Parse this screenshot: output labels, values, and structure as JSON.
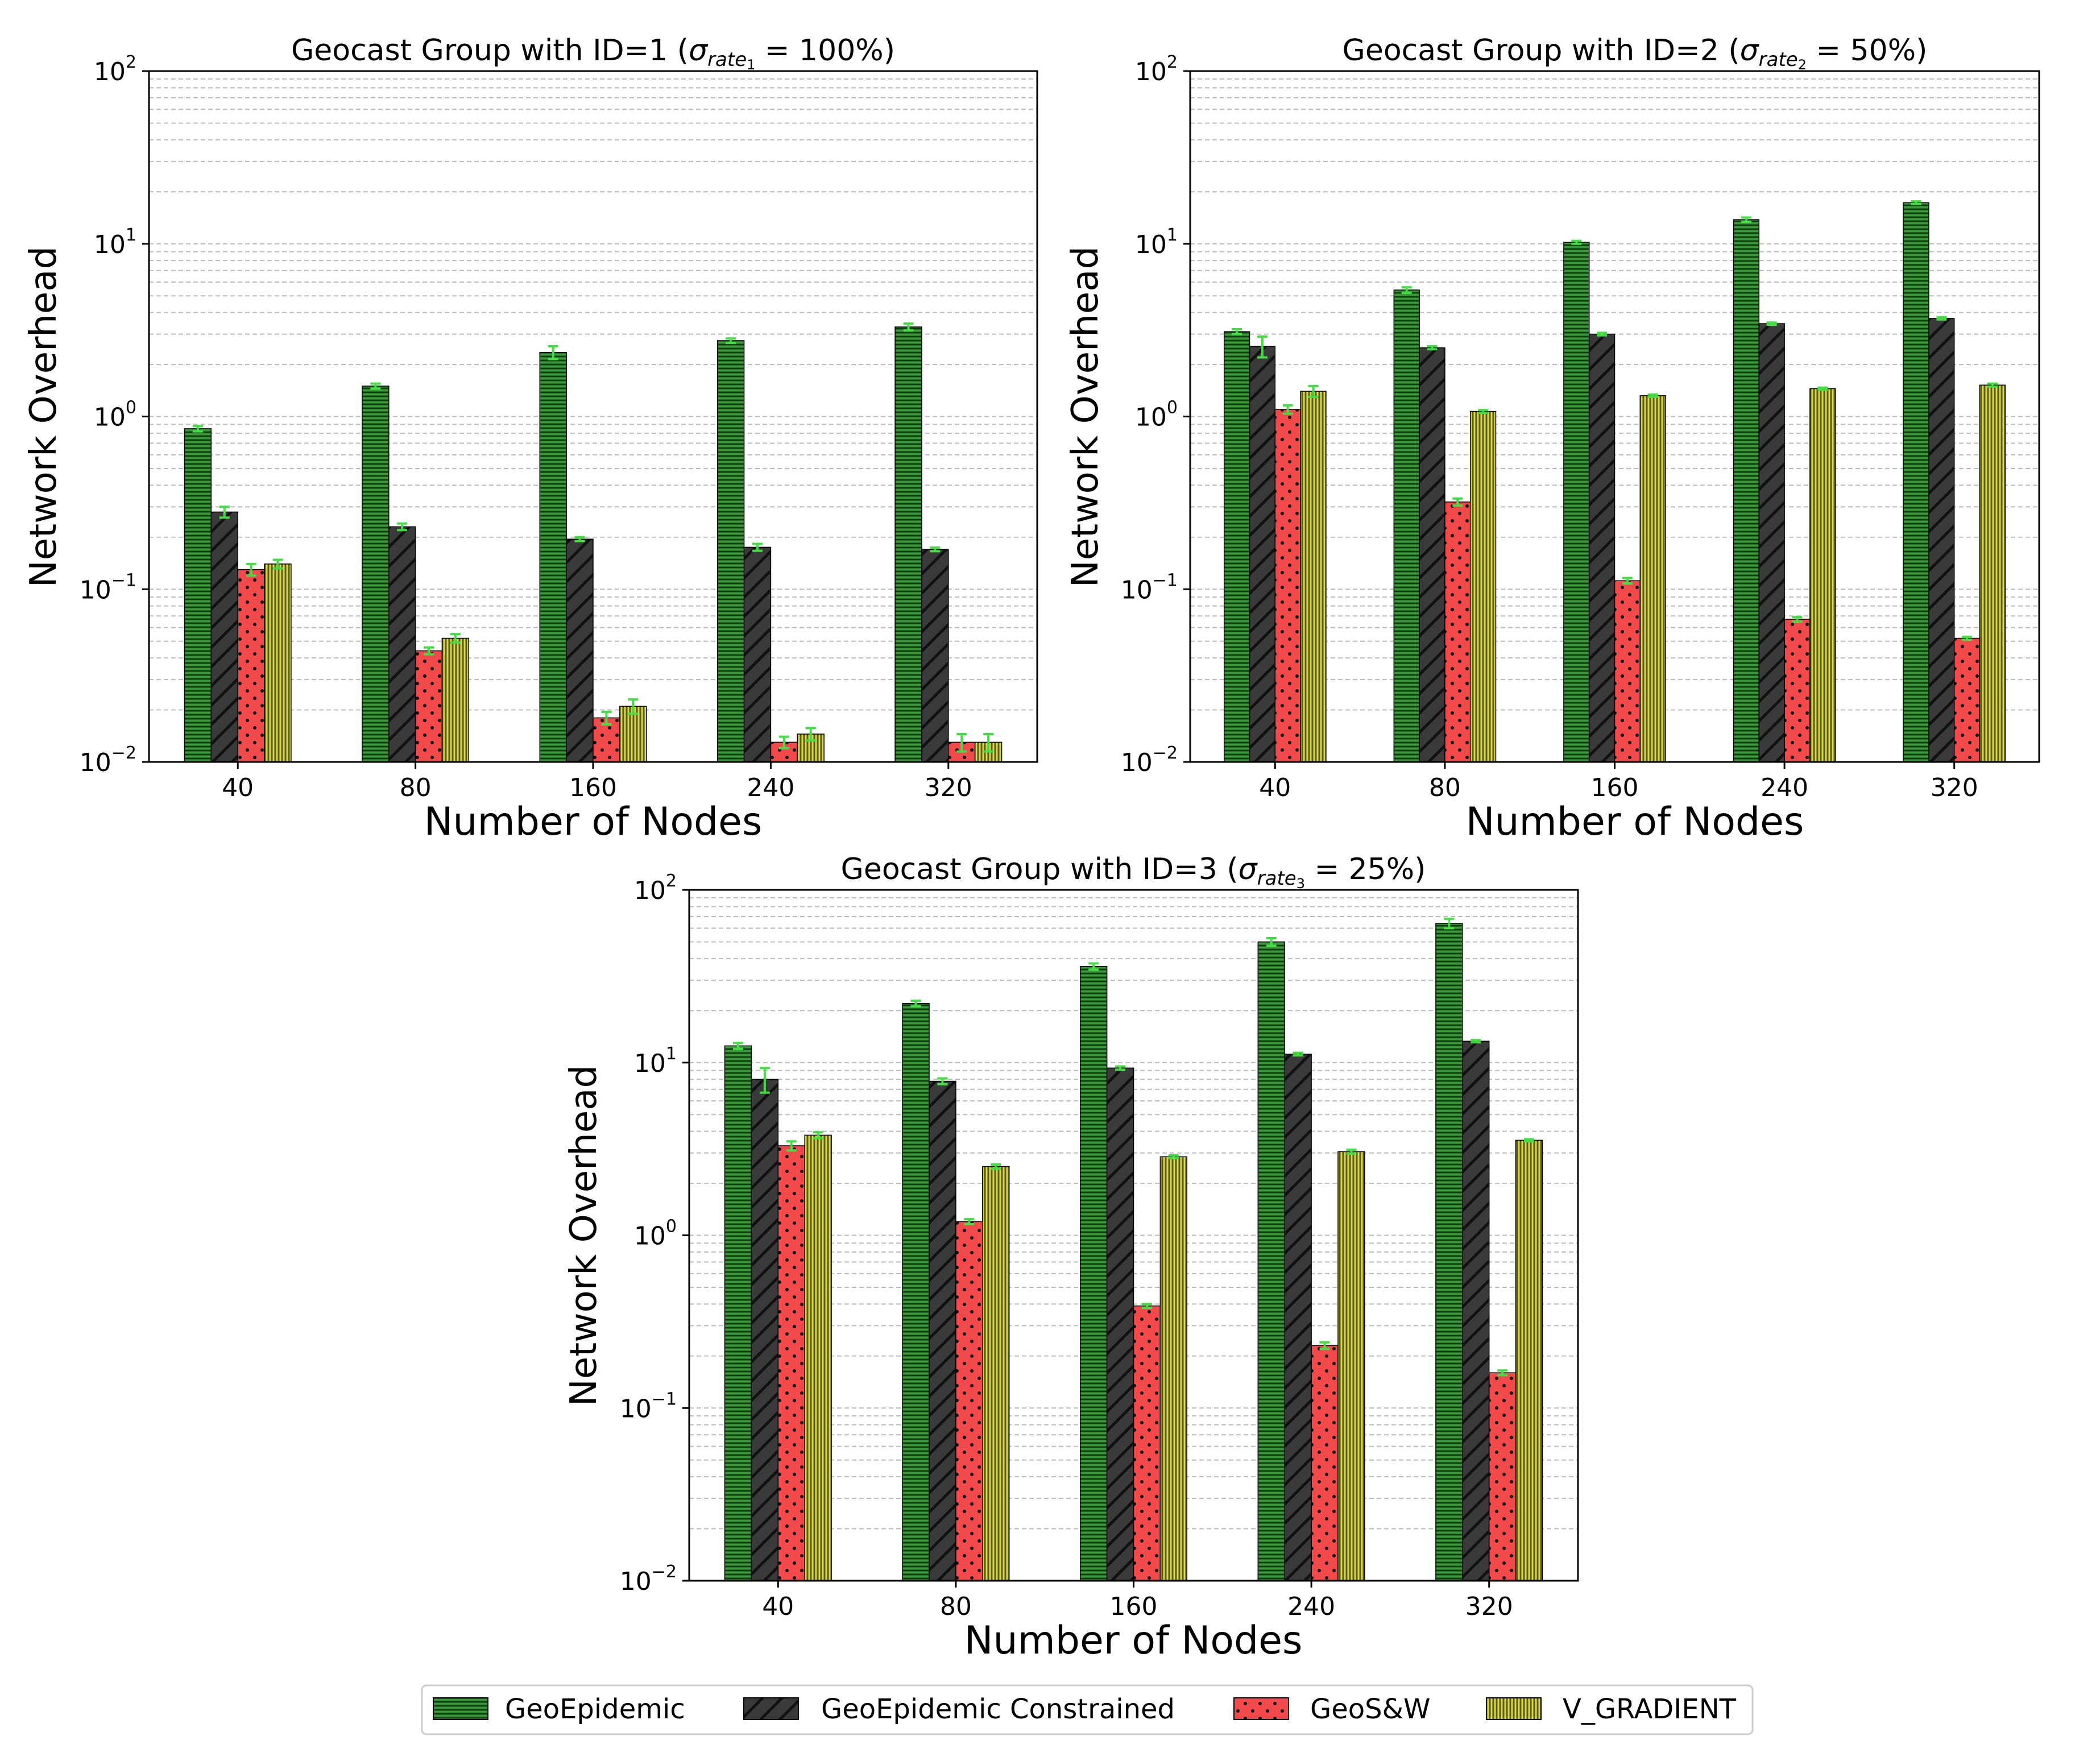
{
  "chart_data": {
    "type": "bar",
    "layout": "three log-scale grouped bar charts, two on top row, one centered below, shared legend at bottom",
    "legend": {
      "placement": "bottom-center",
      "entries": [
        {
          "name": "GeoEpidemic",
          "color": "#3a9a3a",
          "hatch": "horizontal"
        },
        {
          "name": "GeoEpidemic Constrained",
          "color": "#3a3a3a",
          "hatch": "diagonal"
        },
        {
          "name": "GeoS&W",
          "color": "#f24a4a",
          "hatch": "dots"
        },
        {
          "name": "V_GRADIENT",
          "color": "#d8d84a",
          "hatch": "vertical"
        }
      ]
    },
    "colors": {
      "error_bar": "#44dd44",
      "grid": "#bbbbbb",
      "axis": "#000000"
    },
    "charts": [
      {
        "title": "Geocast Group with ID=1",
        "title_math": {
          "sigma": "σ",
          "sub": "rate",
          "subsub": "1",
          "value": " = 100%)"
        },
        "xlabel": "Number of Nodes",
        "ylabel": "Network Overhead",
        "categories": [
          "40",
          "80",
          "160",
          "240",
          "320"
        ],
        "yscale": "log",
        "ylim": [
          0.01,
          100
        ],
        "yticks": [
          {
            "base": "10",
            "exp": "−2"
          },
          {
            "base": "10",
            "exp": "−1"
          },
          {
            "base": "10",
            "exp": "0"
          },
          {
            "base": "10",
            "exp": "1"
          },
          {
            "base": "10",
            "exp": "2"
          }
        ],
        "series": [
          {
            "name": "GeoEpidemic",
            "values": [
              0.85,
              1.5,
              2.35,
              2.75,
              3.3
            ],
            "errors": [
              0.03,
              0.05,
              0.2,
              0.08,
              0.15
            ]
          },
          {
            "name": "GeoEpidemic Constrained",
            "values": [
              0.28,
              0.23,
              0.195,
              0.175,
              0.17
            ],
            "errors": [
              0.02,
              0.01,
              0.005,
              0.008,
              0.004
            ]
          },
          {
            "name": "GeoS&W",
            "values": [
              0.13,
              0.044,
              0.018,
              0.013,
              0.013
            ],
            "errors": [
              0.01,
              0.002,
              0.0015,
              0.001,
              0.0015
            ]
          },
          {
            "name": "V_GRADIENT",
            "values": [
              0.14,
              0.052,
              0.021,
              0.0145,
              0.013
            ],
            "errors": [
              0.008,
              0.003,
              0.002,
              0.0012,
              0.0015
            ]
          }
        ]
      },
      {
        "title": "Geocast Group with ID=2",
        "title_math": {
          "sigma": "σ",
          "sub": "rate",
          "subsub": "2",
          "value": " = 50%)"
        },
        "xlabel": "Number of Nodes",
        "ylabel": "Network Overhead",
        "categories": [
          "40",
          "80",
          "160",
          "240",
          "320"
        ],
        "yscale": "log",
        "ylim": [
          0.01,
          100
        ],
        "yticks": [
          {
            "base": "10",
            "exp": "−2"
          },
          {
            "base": "10",
            "exp": "−1"
          },
          {
            "base": "10",
            "exp": "0"
          },
          {
            "base": "10",
            "exp": "1"
          },
          {
            "base": "10",
            "exp": "2"
          }
        ],
        "series": [
          {
            "name": "GeoEpidemic",
            "values": [
              3.1,
              5.4,
              10.2,
              13.8,
              17.3
            ],
            "errors": [
              0.1,
              0.2,
              0.2,
              0.4,
              0.3
            ]
          },
          {
            "name": "GeoEpidemic Constrained",
            "values": [
              2.55,
              2.5,
              3.0,
              3.45,
              3.7
            ],
            "errors": [
              0.35,
              0.05,
              0.05,
              0.05,
              0.05
            ]
          },
          {
            "name": "GeoS&W",
            "values": [
              1.1,
              0.32,
              0.112,
              0.067,
              0.052
            ],
            "errors": [
              0.06,
              0.015,
              0.004,
              0.002,
              0.001
            ]
          },
          {
            "name": "V_GRADIENT",
            "values": [
              1.4,
              1.07,
              1.32,
              1.45,
              1.52
            ],
            "errors": [
              0.1,
              0.02,
              0.02,
              0.02,
              0.03
            ]
          }
        ]
      },
      {
        "title": "Geocast Group with ID=3",
        "title_math": {
          "sigma": "σ",
          "sub": "rate",
          "subsub": "3",
          "value": " = 25%)"
        },
        "xlabel": "Number of Nodes",
        "ylabel": "Network Overhead",
        "categories": [
          "40",
          "80",
          "160",
          "240",
          "320"
        ],
        "yscale": "log",
        "ylim": [
          0.01,
          100
        ],
        "yticks": [
          {
            "base": "10",
            "exp": "−2"
          },
          {
            "base": "10",
            "exp": "−1"
          },
          {
            "base": "10",
            "exp": "0"
          },
          {
            "base": "10",
            "exp": "1"
          },
          {
            "base": "10",
            "exp": "2"
          }
        ],
        "series": [
          {
            "name": "GeoEpidemic",
            "values": [
              12.5,
              22.0,
              36.0,
              50.0,
              64.0
            ],
            "errors": [
              0.5,
              0.8,
              1.5,
              2.5,
              4.0
            ]
          },
          {
            "name": "GeoEpidemic Constrained",
            "values": [
              8.0,
              7.8,
              9.3,
              11.2,
              13.3
            ],
            "errors": [
              1.3,
              0.3,
              0.2,
              0.2,
              0.2
            ]
          },
          {
            "name": "GeoS&W",
            "values": [
              3.3,
              1.2,
              0.39,
              0.23,
              0.16
            ],
            "errors": [
              0.2,
              0.04,
              0.01,
              0.01,
              0.005
            ]
          },
          {
            "name": "V_GRADIENT",
            "values": [
              3.8,
              2.5,
              2.85,
              3.05,
              3.55
            ],
            "errors": [
              0.15,
              0.07,
              0.05,
              0.08,
              0.05
            ]
          }
        ]
      }
    ]
  }
}
